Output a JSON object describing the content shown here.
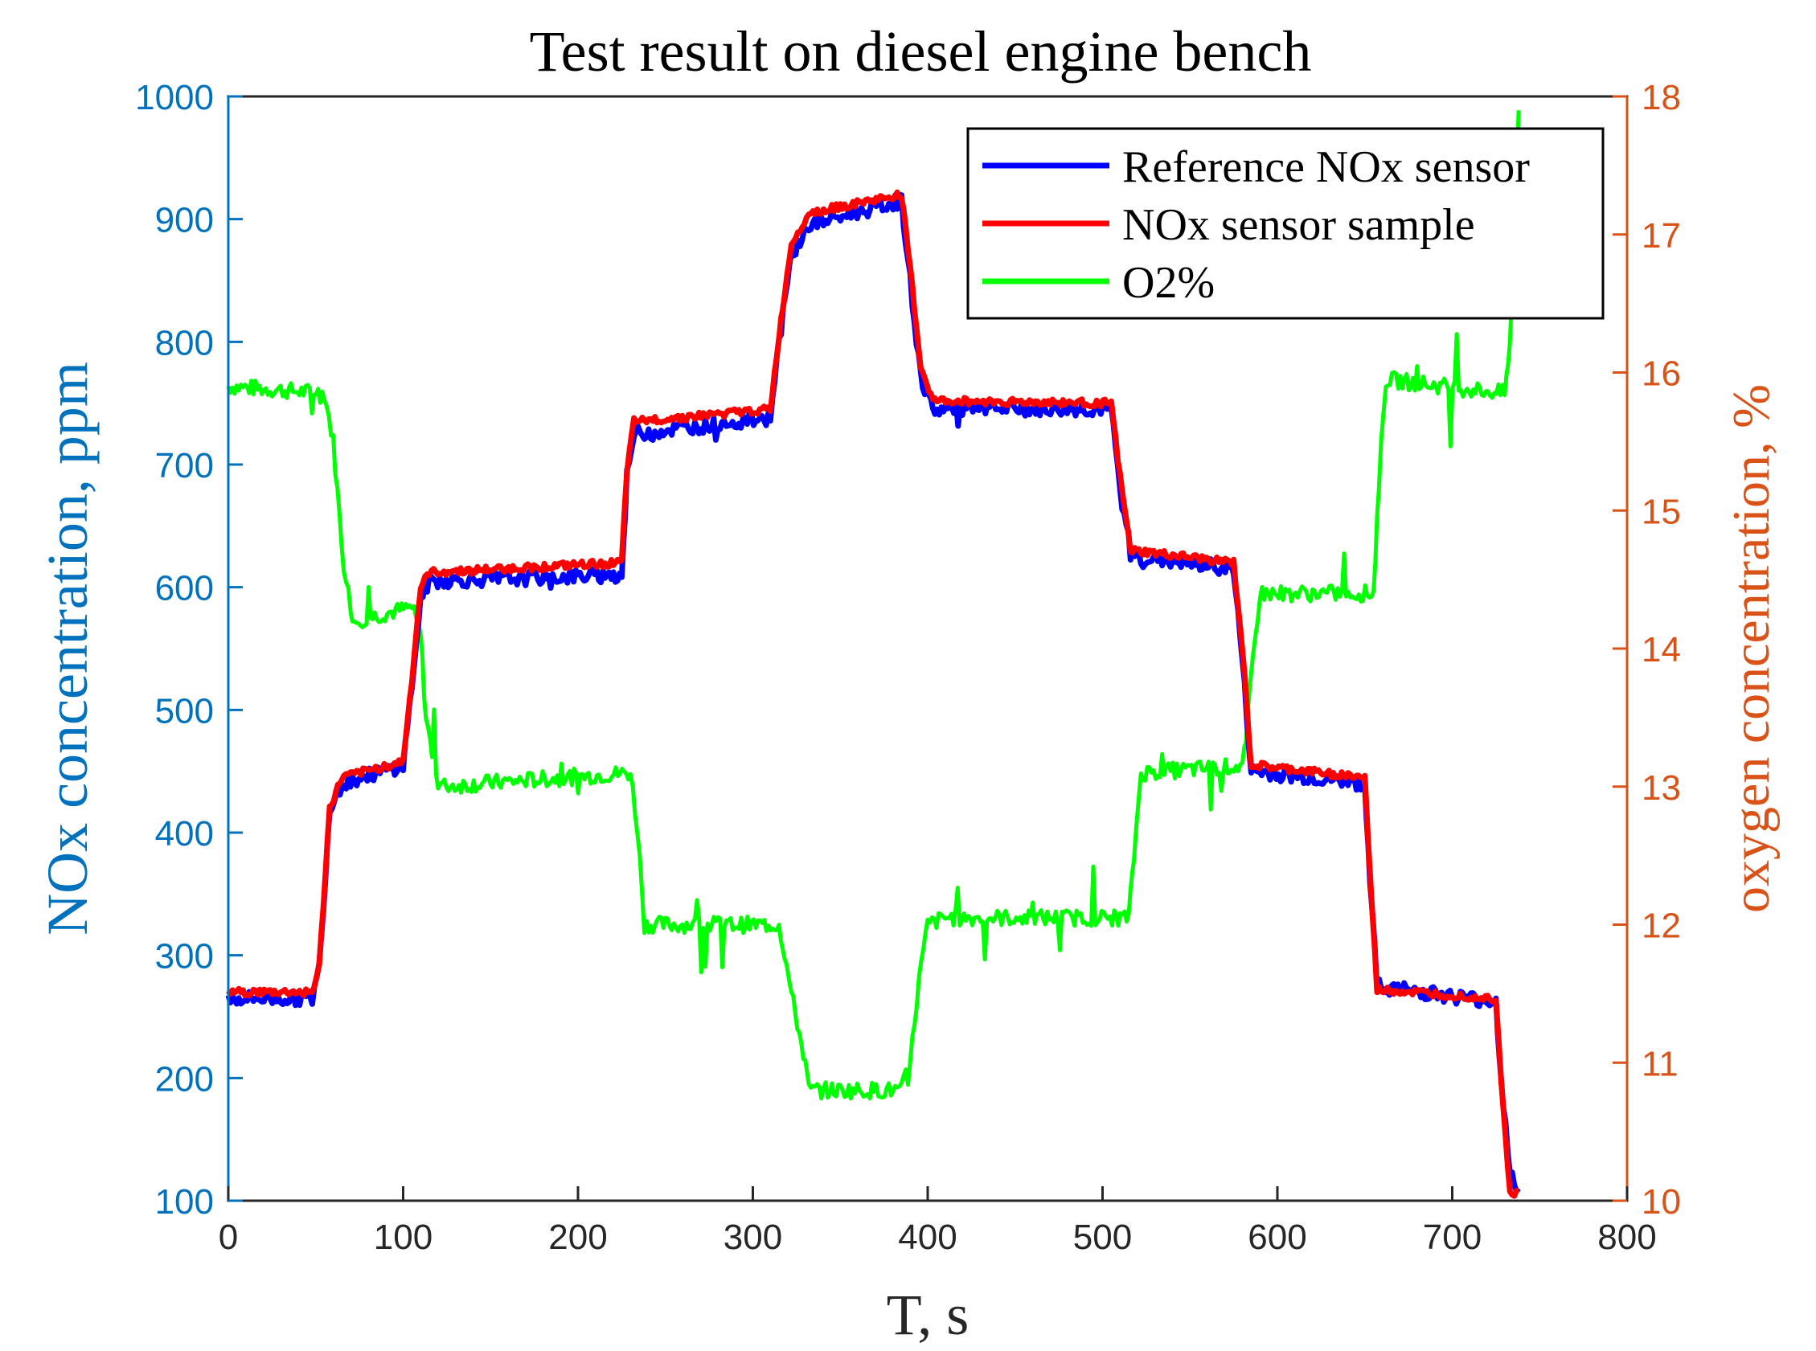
{
  "chart_data": {
    "type": "line",
    "title": "Test result on diesel engine bench",
    "xlabel": "T, s",
    "ylabel_left": "NOx concentration, ppm",
    "ylabel_right": "oxygen concentration, %",
    "xlim": [
      0,
      800
    ],
    "ylim_left": [
      100,
      1000
    ],
    "ylim_right": [
      10,
      18
    ],
    "x_ticks": [
      0,
      100,
      200,
      300,
      400,
      500,
      600,
      700,
      800
    ],
    "y_left_ticks": [
      100,
      200,
      300,
      400,
      500,
      600,
      700,
      800,
      900,
      1000
    ],
    "y_right_ticks": [
      10,
      11,
      12,
      13,
      14,
      15,
      16,
      17,
      18
    ],
    "grid": false,
    "legend_position": "top-right",
    "colors": {
      "left_axis": "#0072BD",
      "right_axis": "#D95319",
      "reference": "#0000FF",
      "sample": "#FF0000",
      "o2": "#00FF00"
    },
    "series": [
      {
        "name": "Reference NOx sensor",
        "axis": "left",
        "x": [
          0,
          48,
          52,
          58,
          65,
          100,
          105,
          110,
          115,
          225,
          228,
          232,
          310,
          315,
          322,
          332,
          385,
          390,
          396,
          403,
          505,
          510,
          516,
          575,
          580,
          585,
          650,
          653,
          657,
          725,
          728,
          733,
          738
        ],
        "values": [
          265,
          265,
          290,
          420,
          440,
          455,
          520,
          590,
          605,
          610,
          690,
          725,
          738,
          800,
          870,
          895,
          915,
          850,
          770,
          745,
          745,
          680,
          625,
          615,
          540,
          450,
          440,
          360,
          275,
          262,
          200,
          120,
          110
        ]
      },
      {
        "name": "NOx sensor sample",
        "axis": "left",
        "x": [
          0,
          48,
          52,
          58,
          65,
          100,
          105,
          110,
          115,
          225,
          228,
          232,
          310,
          315,
          322,
          332,
          385,
          390,
          396,
          403,
          505,
          510,
          516,
          575,
          580,
          585,
          650,
          653,
          657,
          725,
          728,
          733,
          738
        ],
        "values": [
          270,
          270,
          290,
          420,
          445,
          458,
          525,
          600,
          612,
          620,
          695,
          735,
          745,
          805,
          880,
          905,
          920,
          860,
          780,
          752,
          750,
          690,
          630,
          620,
          550,
          455,
          445,
          365,
          272,
          265,
          200,
          105,
          108
        ]
      },
      {
        "name": "O2%",
        "axis": "right",
        "x": [
          0,
          55,
          60,
          66,
          70,
          72,
          105,
          110,
          113,
          120,
          230,
          234,
          238,
          315,
          318,
          322,
          330,
          332,
          385,
          390,
          395,
          400,
          410,
          515,
          518,
          522,
          580,
          582,
          585,
          590,
          655,
          658,
          662,
          730,
          733,
          736,
          738
        ],
        "values": [
          15.9,
          15.85,
          15.5,
          14.6,
          14.3,
          14.2,
          14.3,
          14.1,
          13.5,
          13.0,
          13.1,
          12.7,
          12.0,
          12.0,
          11.8,
          11.5,
          11.0,
          10.8,
          10.8,
          11.0,
          11.6,
          12.0,
          12.05,
          12.05,
          12.5,
          13.1,
          13.15,
          13.3,
          13.8,
          14.4,
          14.4,
          15.2,
          15.95,
          15.85,
          16.2,
          17.2,
          17.9
        ]
      }
    ]
  }
}
